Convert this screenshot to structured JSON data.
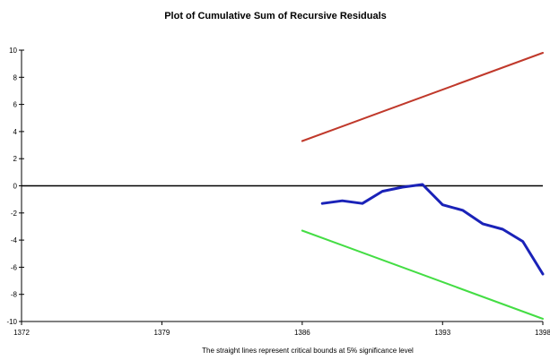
{
  "chart_data": {
    "type": "line",
    "title": "Plot of Cumulative Sum of Recursive Residuals",
    "note": "The straight lines represent critical bounds at 5% significance level",
    "xlim": [
      1372,
      1398
    ],
    "ylim": [
      -10,
      10
    ],
    "x_ticks": [
      1372,
      1379,
      1386,
      1393,
      1398
    ],
    "y_ticks": [
      10,
      8,
      6,
      4,
      2,
      0,
      -2,
      -4,
      -6,
      -8,
      -10
    ],
    "zero_line": true,
    "series": [
      {
        "color": "#c0392b",
        "x": [
          1386,
          1398
        ],
        "y": [
          3.3,
          9.8
        ]
      },
      {
        "color": "#44dd44",
        "x": [
          1386,
          1398
        ],
        "y": [
          -3.3,
          -9.8
        ]
      },
      {
        "color": "#1a22b8",
        "x": [
          1387,
          1388,
          1389,
          1390,
          1391,
          1392,
          1393,
          1394,
          1395,
          1396,
          1397,
          1398
        ],
        "y": [
          -1.3,
          -1.1,
          -1.3,
          -0.4,
          -0.1,
          0.1,
          -1.4,
          -1.8,
          -2.8,
          -3.2,
          -4.1,
          -6.5
        ]
      }
    ]
  }
}
